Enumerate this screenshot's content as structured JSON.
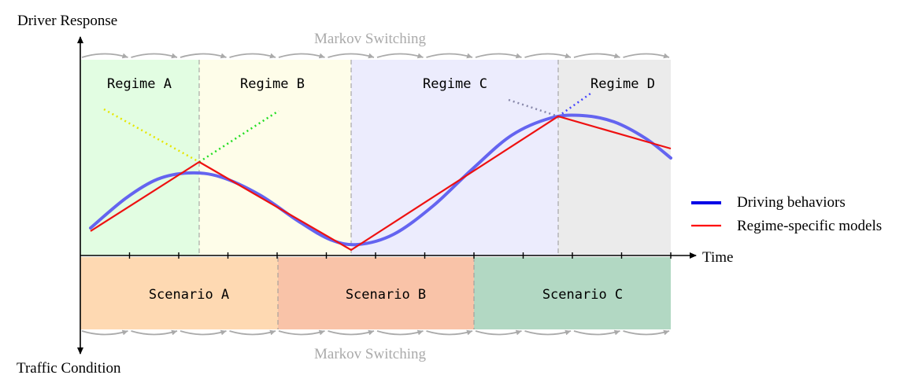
{
  "axes": {
    "y_top_label": "Driver Response",
    "y_bottom_label": "Traffic Condition",
    "x_label": "Time"
  },
  "switching": {
    "top_label": "Markov Switching",
    "bottom_label": "Markov Switching"
  },
  "regimes": [
    {
      "label": "Regime A",
      "color": "#e2fde2"
    },
    {
      "label": "Regime B",
      "color": "#fefde9"
    },
    {
      "label": "Regime C",
      "color": "#ececfd"
    },
    {
      "label": "Regime D",
      "color": "#ebebeb"
    }
  ],
  "scenarios": [
    {
      "label": "Scenario A",
      "color": "#fed9b2"
    },
    {
      "label": "Scenario B",
      "color": "#f9c3a8"
    },
    {
      "label": "Scenario C",
      "color": "#b2d8c3"
    }
  ],
  "legend": [
    {
      "label": "Driving behaviors",
      "color": "#0000e6"
    },
    {
      "label": "Regime-specific models",
      "color": "#ff0000"
    }
  ],
  "colors": {
    "behavior_curve": "#6464f0",
    "regime_model": "#ee1111",
    "switch_arrows": "#aaaaaa",
    "extension_a": "#e6e600",
    "extension_b": "#22dd22",
    "extension_c": "#8888aa",
    "extension_d": "#4444ff"
  }
}
